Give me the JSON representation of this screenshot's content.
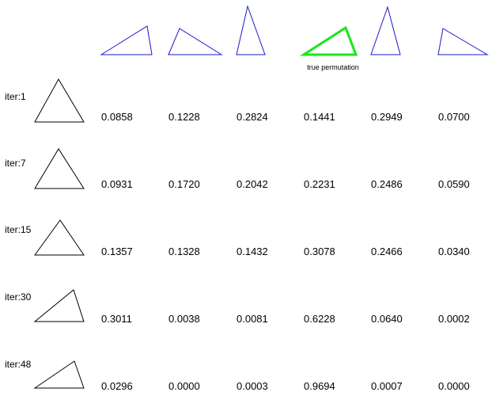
{
  "colors": {
    "candidate_stroke": "#1a1acc",
    "true_stroke": "#19e619",
    "iter_stroke": "#000000"
  },
  "candidates": [
    {
      "shape": "triangle-leaning-right",
      "true": false,
      "caption": ""
    },
    {
      "shape": "triangle-wide-right",
      "true": false,
      "caption": ""
    },
    {
      "shape": "triangle-tall-narrow",
      "true": false,
      "caption": ""
    },
    {
      "shape": "triangle-leaning-right",
      "true": true,
      "caption": "true permutation"
    },
    {
      "shape": "triangle-tall-narrow",
      "true": false,
      "caption": ""
    },
    {
      "shape": "triangle-wide-right",
      "true": false,
      "caption": ""
    }
  ],
  "iterations": [
    {
      "label": "iter:1",
      "probs": [
        "0.0858",
        "0.1228",
        "0.2824",
        "0.1441",
        "0.2949",
        "0.0700"
      ]
    },
    {
      "label": "iter:7",
      "probs": [
        "0.0931",
        "0.1720",
        "0.2042",
        "0.2231",
        "0.2486",
        "0.0590"
      ]
    },
    {
      "label": "iter:15",
      "probs": [
        "0.1357",
        "0.1328",
        "0.1432",
        "0.3078",
        "0.2466",
        "0.0340"
      ]
    },
    {
      "label": "iter:30",
      "probs": [
        "0.3011",
        "0.0038",
        "0.0081",
        "0.6228",
        "0.0640",
        "0.0002"
      ]
    },
    {
      "label": "iter:48",
      "probs": [
        "0.0296",
        "0.0000",
        "0.0003",
        "0.9694",
        "0.0007",
        "0.0000"
      ]
    }
  ]
}
